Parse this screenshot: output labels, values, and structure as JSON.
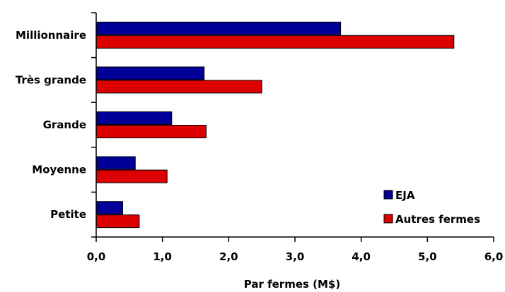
{
  "chart_data": {
    "type": "bar",
    "orientation": "horizontal",
    "categories": [
      "Millionnaire",
      "Très grande",
      "Grande",
      "Moyenne",
      "Petite"
    ],
    "series": [
      {
        "name": "EJA",
        "color": "#000099",
        "values": [
          3.69,
          1.63,
          1.14,
          0.59,
          0.4
        ]
      },
      {
        "name": "Autres fermes",
        "color": "#DD0000",
        "values": [
          5.4,
          2.5,
          1.66,
          1.07,
          0.65
        ]
      }
    ],
    "xlabel": "Par fermes (M$)",
    "ylabel": "",
    "xlim": [
      0,
      6
    ],
    "xticks": [
      "0,0",
      "1,0",
      "2,0",
      "3,0",
      "4,0",
      "5,0",
      "6,0"
    ],
    "grid": false,
    "legend": "bottom-right"
  }
}
